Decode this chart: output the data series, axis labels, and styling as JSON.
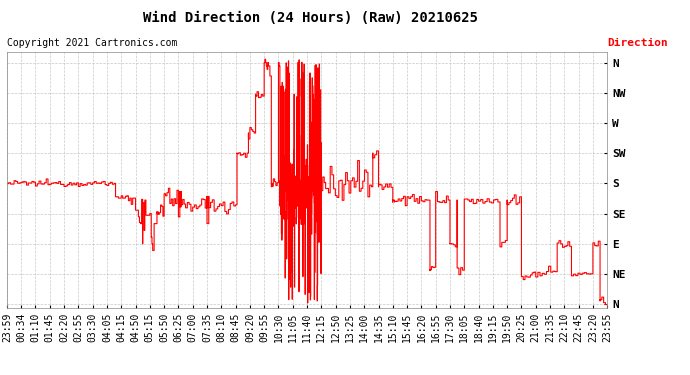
{
  "title": "Wind Direction (24 Hours) (Raw) 20210625",
  "copyright": "Copyright 2021 Cartronics.com",
  "legend_label": "Direction",
  "legend_color": "#ff0000",
  "background_color": "#ffffff",
  "plot_bg_color": "#ffffff",
  "grid_color": "#bbbbbb",
  "line_color": "#ff0000",
  "line_color2": "#555555",
  "ytick_labels": [
    "N",
    "NE",
    "E",
    "SE",
    "S",
    "SW",
    "W",
    "NW",
    "N"
  ],
  "ytick_values": [
    0,
    45,
    90,
    135,
    180,
    225,
    270,
    315,
    360
  ],
  "ylim": [
    -5,
    375
  ],
  "title_fontsize": 10,
  "copyright_fontsize": 7,
  "tick_fontsize": 7,
  "times": [
    "23:59",
    "00:34",
    "01:10",
    "01:45",
    "02:20",
    "02:55",
    "03:30",
    "04:05",
    "04:15",
    "04:50",
    "05:15",
    "05:50",
    "06:25",
    "07:00",
    "07:35",
    "08:10",
    "08:45",
    "09:20",
    "09:55",
    "10:30",
    "11:05",
    "11:40",
    "12:15",
    "12:50",
    "13:25",
    "14:00",
    "14:35",
    "15:10",
    "15:45",
    "16:20",
    "16:55",
    "17:30",
    "18:05",
    "18:40",
    "19:15",
    "19:50",
    "20:25",
    "21:00",
    "21:35",
    "22:10",
    "22:45",
    "23:20",
    "23:55"
  ]
}
